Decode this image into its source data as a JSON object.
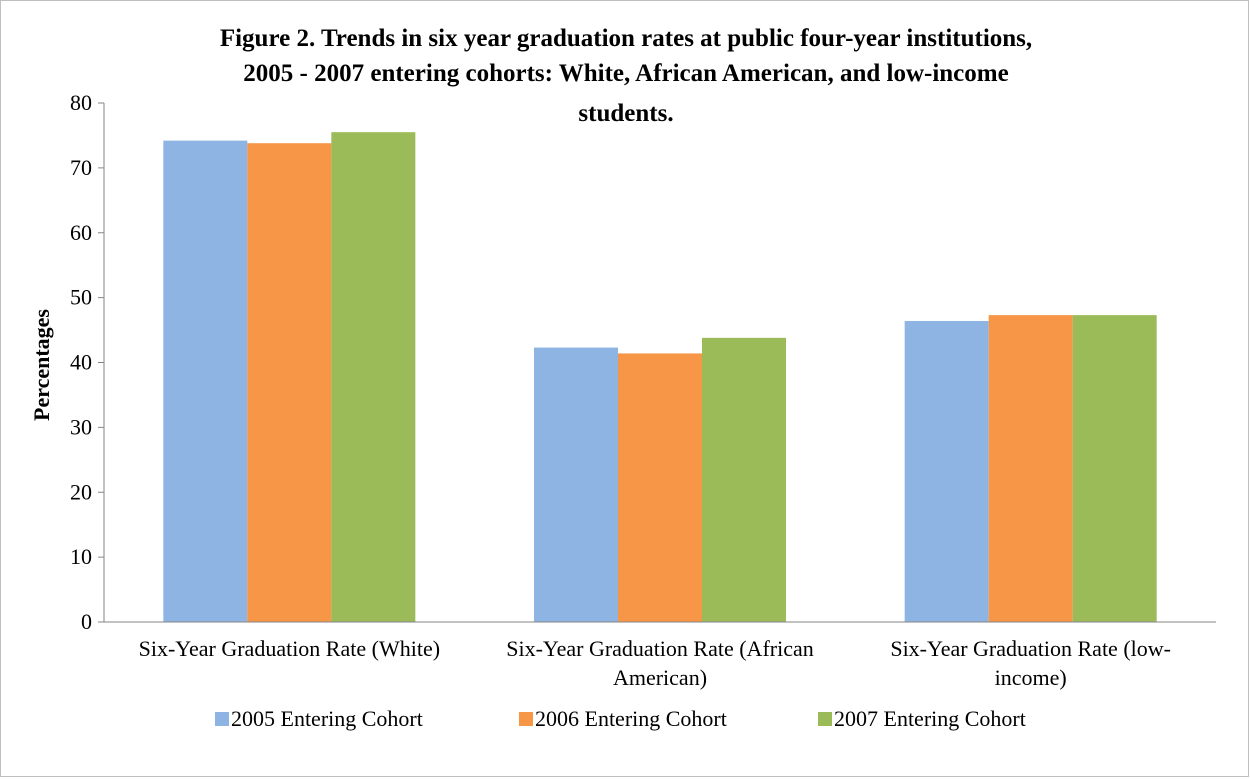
{
  "chart_data": {
    "type": "bar",
    "title_lines": [
      "Figure 2. Trends in six year graduation rates at public four-year institutions,",
      "2005 - 2007 entering cohorts: White, African American, and low-income",
      "students."
    ],
    "ylabel": "Percentages",
    "xlabel": "",
    "ylim": [
      0,
      80
    ],
    "yticks": [
      0,
      10,
      20,
      30,
      40,
      50,
      60,
      70,
      80
    ],
    "grid": false,
    "legend_position": "bottom",
    "categories": [
      [
        "Six-Year Graduation Rate (White)"
      ],
      [
        "Six-Year Graduation Rate (African",
        "American)"
      ],
      [
        "Six-Year Graduation Rate (low-",
        "income)"
      ]
    ],
    "series": [
      {
        "name": "2005 Entering Cohort",
        "color": "#8EB4E3",
        "values": [
          74.2,
          42.3,
          46.4
        ]
      },
      {
        "name": "2006 Entering Cohort",
        "color": "#F79646",
        "values": [
          73.8,
          41.4,
          47.3
        ]
      },
      {
        "name": "2007 Entering Cohort",
        "color": "#9BBB59",
        "values": [
          75.5,
          43.8,
          47.3
        ]
      }
    ]
  }
}
